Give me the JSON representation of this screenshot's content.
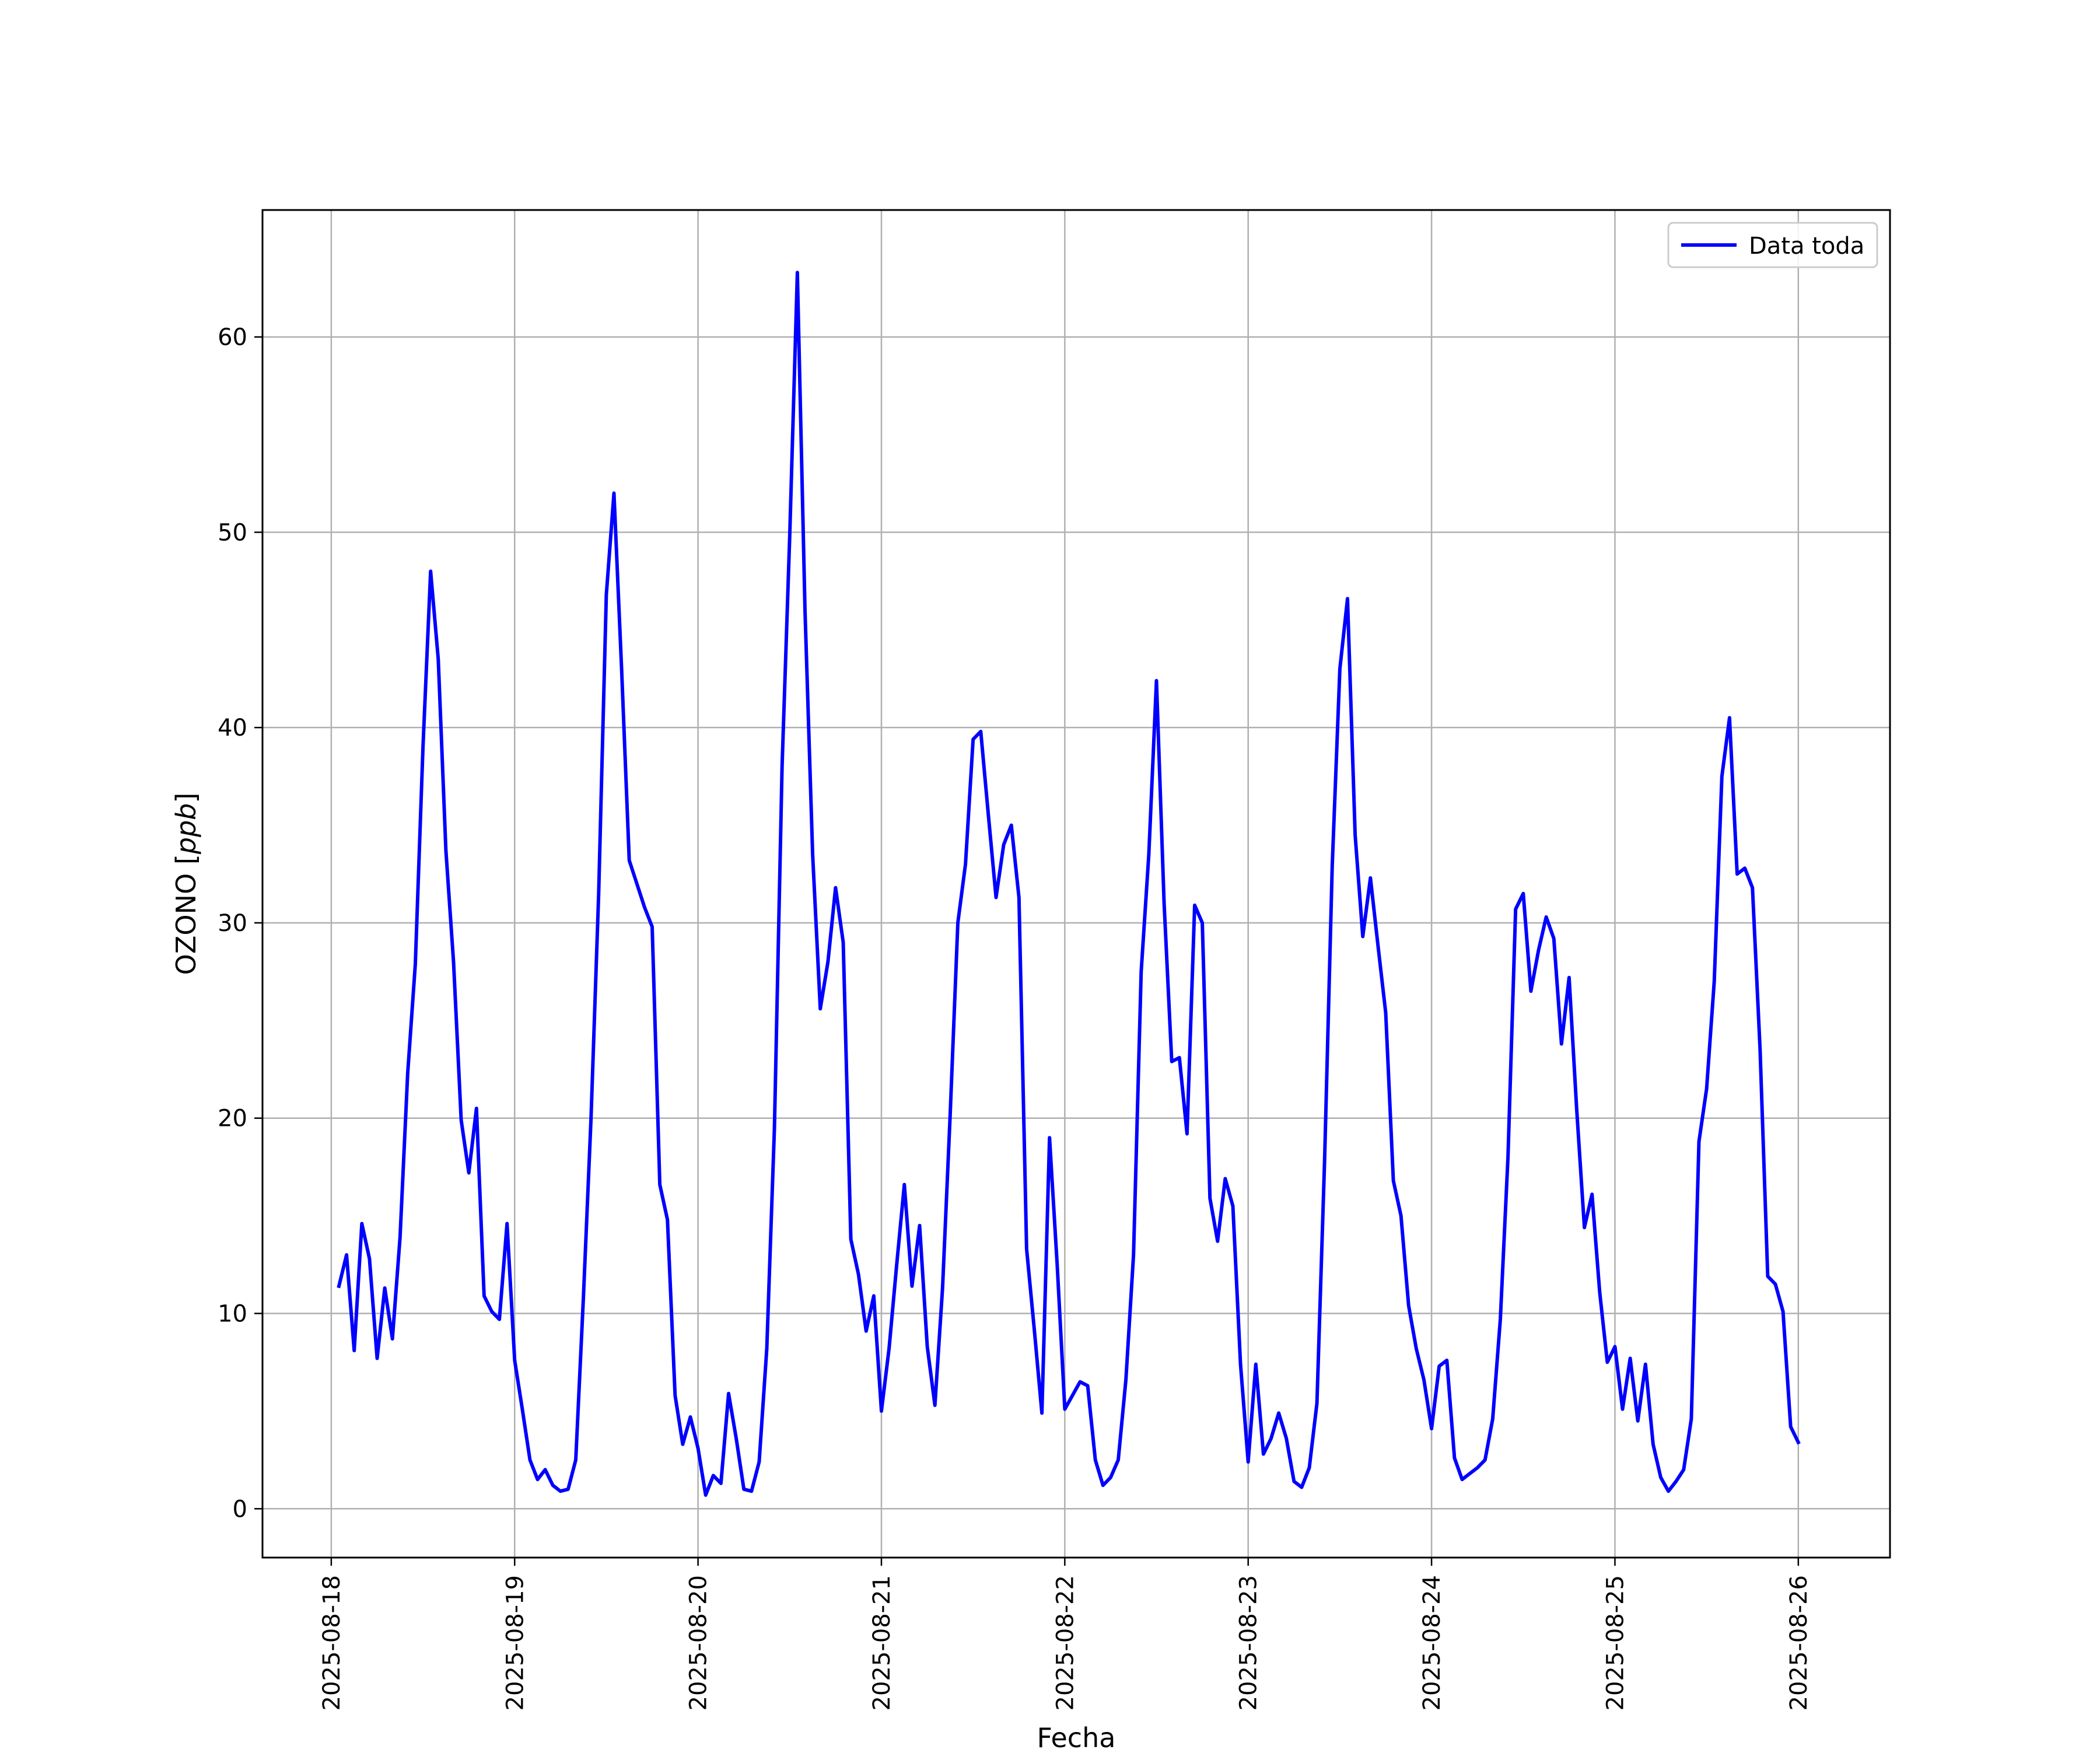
{
  "chart_data": {
    "type": "line",
    "title": "",
    "xlabel": "Fecha",
    "ylabel": "OZONO [ppb]",
    "ylabel_main": "OZONO ",
    "ylabel_unit": "ppb",
    "xlim": [
      "2025-08-17 15:00",
      "2025-08-26 12:00"
    ],
    "ylim": [
      -2.5,
      66.5
    ],
    "x_ticks": [
      "2025-08-18",
      "2025-08-19",
      "2025-08-20",
      "2025-08-21",
      "2025-08-22",
      "2025-08-23",
      "2025-08-24",
      "2025-08-25",
      "2025-08-26"
    ],
    "y_ticks": [
      0,
      10,
      20,
      30,
      40,
      50,
      60
    ],
    "grid": true,
    "legend_position": "upper right",
    "series": [
      {
        "name": "Data toda",
        "color": "#0000ff",
        "x": [
          "2025-08-18 01:00",
          "2025-08-18 02:00",
          "2025-08-18 03:00",
          "2025-08-18 04:00",
          "2025-08-18 05:00",
          "2025-08-18 06:00",
          "2025-08-18 07:00",
          "2025-08-18 08:00",
          "2025-08-18 09:00",
          "2025-08-18 10:00",
          "2025-08-18 11:00",
          "2025-08-18 12:00",
          "2025-08-18 13:00",
          "2025-08-18 14:00",
          "2025-08-18 15:00",
          "2025-08-18 16:00",
          "2025-08-18 17:00",
          "2025-08-18 18:00",
          "2025-08-18 19:00",
          "2025-08-18 20:00",
          "2025-08-18 21:00",
          "2025-08-18 22:00",
          "2025-08-18 23:00",
          "2025-08-19 00:00",
          "2025-08-19 01:00",
          "2025-08-19 02:00",
          "2025-08-19 03:00",
          "2025-08-19 04:00",
          "2025-08-19 05:00",
          "2025-08-19 06:00",
          "2025-08-19 07:00",
          "2025-08-19 08:00",
          "2025-08-19 09:00",
          "2025-08-19 10:00",
          "2025-08-19 11:00",
          "2025-08-19 12:00",
          "2025-08-19 13:00",
          "2025-08-19 14:00",
          "2025-08-19 15:00",
          "2025-08-19 16:00",
          "2025-08-19 17:00",
          "2025-08-19 18:00",
          "2025-08-19 19:00",
          "2025-08-19 20:00",
          "2025-08-19 21:00",
          "2025-08-19 22:00",
          "2025-08-19 23:00",
          "2025-08-20 00:00",
          "2025-08-20 01:00",
          "2025-08-20 02:00",
          "2025-08-20 03:00",
          "2025-08-20 04:00",
          "2025-08-20 05:00",
          "2025-08-20 06:00",
          "2025-08-20 07:00",
          "2025-08-20 08:00",
          "2025-08-20 09:00",
          "2025-08-20 10:00",
          "2025-08-20 11:00",
          "2025-08-20 12:00",
          "2025-08-20 13:00",
          "2025-08-20 14:00",
          "2025-08-20 15:00",
          "2025-08-20 16:00",
          "2025-08-20 17:00",
          "2025-08-20 18:00",
          "2025-08-20 19:00",
          "2025-08-20 20:00",
          "2025-08-20 21:00",
          "2025-08-20 22:00",
          "2025-08-20 23:00",
          "2025-08-21 00:00",
          "2025-08-21 01:00",
          "2025-08-21 02:00",
          "2025-08-21 03:00",
          "2025-08-21 04:00",
          "2025-08-21 05:00",
          "2025-08-21 06:00",
          "2025-08-21 07:00",
          "2025-08-21 08:00",
          "2025-08-21 09:00",
          "2025-08-21 10:00",
          "2025-08-21 11:00",
          "2025-08-21 12:00",
          "2025-08-21 13:00",
          "2025-08-21 14:00",
          "2025-08-21 15:00",
          "2025-08-21 16:00",
          "2025-08-21 17:00",
          "2025-08-21 18:00",
          "2025-08-21 19:00",
          "2025-08-21 20:00",
          "2025-08-21 21:00",
          "2025-08-21 22:00",
          "2025-08-21 23:00",
          "2025-08-22 00:00",
          "2025-08-22 01:00",
          "2025-08-22 02:00",
          "2025-08-22 03:00",
          "2025-08-22 04:00",
          "2025-08-22 05:00",
          "2025-08-22 06:00",
          "2025-08-22 07:00",
          "2025-08-22 08:00",
          "2025-08-22 09:00",
          "2025-08-22 10:00",
          "2025-08-22 11:00",
          "2025-08-22 12:00",
          "2025-08-22 13:00",
          "2025-08-22 14:00",
          "2025-08-22 15:00",
          "2025-08-22 16:00",
          "2025-08-22 17:00",
          "2025-08-22 18:00",
          "2025-08-22 19:00",
          "2025-08-22 20:00",
          "2025-08-22 21:00",
          "2025-08-22 22:00",
          "2025-08-22 23:00",
          "2025-08-23 00:00",
          "2025-08-23 01:00",
          "2025-08-23 02:00",
          "2025-08-23 03:00",
          "2025-08-23 04:00",
          "2025-08-23 05:00",
          "2025-08-23 06:00",
          "2025-08-23 07:00",
          "2025-08-23 08:00",
          "2025-08-23 09:00",
          "2025-08-23 10:00",
          "2025-08-23 11:00",
          "2025-08-23 12:00",
          "2025-08-23 13:00",
          "2025-08-23 14:00",
          "2025-08-23 15:00",
          "2025-08-23 16:00",
          "2025-08-23 17:00",
          "2025-08-23 18:00",
          "2025-08-23 19:00",
          "2025-08-23 20:00",
          "2025-08-23 21:00",
          "2025-08-23 22:00",
          "2025-08-23 23:00",
          "2025-08-24 00:00",
          "2025-08-24 01:00",
          "2025-08-24 02:00",
          "2025-08-24 03:00",
          "2025-08-24 04:00",
          "2025-08-24 05:00",
          "2025-08-24 06:00",
          "2025-08-24 07:00",
          "2025-08-24 08:00",
          "2025-08-24 09:00",
          "2025-08-24 10:00",
          "2025-08-24 11:00",
          "2025-08-24 12:00",
          "2025-08-24 13:00",
          "2025-08-24 14:00",
          "2025-08-24 15:00",
          "2025-08-24 16:00",
          "2025-08-24 17:00",
          "2025-08-24 18:00",
          "2025-08-24 19:00",
          "2025-08-24 20:00",
          "2025-08-24 21:00",
          "2025-08-24 22:00",
          "2025-08-24 23:00",
          "2025-08-25 00:00",
          "2025-08-25 01:00",
          "2025-08-25 02:00",
          "2025-08-25 03:00",
          "2025-08-25 04:00",
          "2025-08-25 05:00",
          "2025-08-25 06:00",
          "2025-08-25 07:00",
          "2025-08-25 08:00",
          "2025-08-25 09:00",
          "2025-08-25 10:00",
          "2025-08-25 11:00",
          "2025-08-25 12:00",
          "2025-08-25 13:00",
          "2025-08-25 14:00",
          "2025-08-25 15:00",
          "2025-08-25 16:00",
          "2025-08-25 17:00",
          "2025-08-25 18:00",
          "2025-08-25 19:00",
          "2025-08-25 20:00",
          "2025-08-25 21:00",
          "2025-08-25 22:00",
          "2025-08-25 23:00",
          "2025-08-26 00:00"
        ],
        "y": [
          11.4,
          13.0,
          8.1,
          14.6,
          12.8,
          7.7,
          11.3,
          8.7,
          13.9,
          22.3,
          27.9,
          39.0,
          48.0,
          43.5,
          33.7,
          28.0,
          19.9,
          17.2,
          20.5,
          10.9,
          10.1,
          9.7,
          14.6,
          7.6,
          5.1,
          2.5,
          1.5,
          2.0,
          1.2,
          0.9,
          1.0,
          2.5,
          10.8,
          20.0,
          31.5,
          46.8,
          52.0,
          43.0,
          33.2,
          32.0,
          30.8,
          29.8,
          16.6,
          14.8,
          5.8,
          3.3,
          4.7,
          3.1,
          0.7,
          1.7,
          1.3,
          5.9,
          3.6,
          1.0,
          0.9,
          2.4,
          8.2,
          19.5,
          38.0,
          49.8,
          63.3,
          46.0,
          33.5,
          25.6,
          28.0,
          31.8,
          29.0,
          13.8,
          12.0,
          9.1,
          10.9,
          5.0,
          8.2,
          12.5,
          16.6,
          11.4,
          14.5,
          8.3,
          5.3,
          11.3,
          20.2,
          30.0,
          33.0,
          39.4,
          39.8,
          35.5,
          31.3,
          34.0,
          35.0,
          31.3,
          13.3,
          9.2,
          4.9,
          19.0,
          12.5,
          5.1,
          5.8,
          6.5,
          6.3,
          2.5,
          1.2,
          1.6,
          2.5,
          6.6,
          13.0,
          27.5,
          33.5,
          42.4,
          31.0,
          22.9,
          23.1,
          19.2,
          30.9,
          30.0,
          15.9,
          13.7,
          16.9,
          15.5,
          7.4,
          2.4,
          7.4,
          2.8,
          3.6,
          4.9,
          3.6,
          1.4,
          1.1,
          2.1,
          5.4,
          17.8,
          32.9,
          43.0,
          46.6,
          34.5,
          29.3,
          32.3,
          28.8,
          25.4,
          16.8,
          15.0,
          10.4,
          8.2,
          6.6,
          4.1,
          7.3,
          7.6,
          2.6,
          1.5,
          1.8,
          2.1,
          2.5,
          4.6,
          9.7,
          18.0,
          30.7,
          31.5,
          26.5,
          28.6,
          30.3,
          29.2,
          23.8,
          27.2,
          20.4,
          14.4,
          16.1,
          11.1,
          7.5,
          8.3,
          5.1,
          7.7,
          4.5,
          7.4,
          3.3,
          1.6,
          0.9,
          1.4,
          2.0,
          4.6,
          18.8,
          21.5,
          27.0,
          37.5,
          40.5,
          32.5,
          32.8,
          31.8,
          23.5,
          11.9,
          11.5,
          10.1,
          4.2,
          3.4
        ]
      }
    ]
  }
}
